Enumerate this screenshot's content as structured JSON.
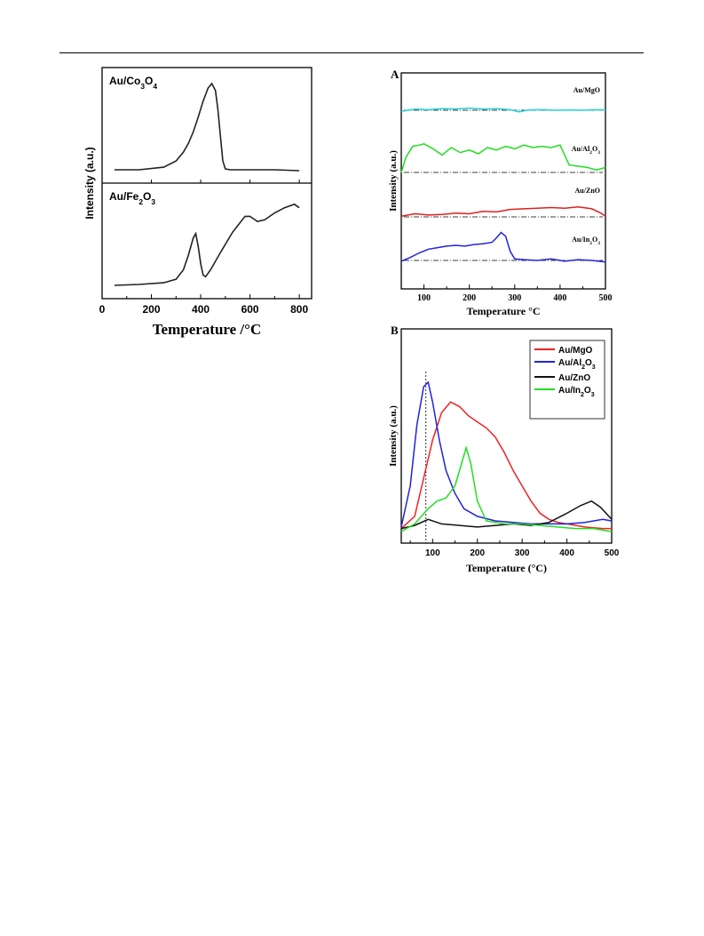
{
  "chart_data": [
    {
      "id": "left",
      "type": "line",
      "xlabel": "Temperature /°C",
      "ylabel": "Intensity (a.u.)",
      "xlim": [
        0,
        850
      ],
      "xticks": [
        0,
        200,
        400,
        600,
        800
      ],
      "legend": "none",
      "grid": false,
      "panels": [
        {
          "label": "Au/Co3O4",
          "label_parts": {
            "base": "Au/Co",
            "sub1": "3",
            "mid": "O",
            "sub2": "4"
          },
          "series": [
            {
              "color": "#222222",
              "x": [
                50,
                150,
                250,
                300,
                330,
                350,
                370,
                390,
                410,
                430,
                445,
                460,
                470,
                480,
                490,
                500,
                520,
                600,
                700,
                800
              ],
              "y": [
                0.02,
                0.02,
                0.05,
                0.12,
                0.22,
                0.32,
                0.45,
                0.62,
                0.8,
                0.95,
                1.0,
                0.92,
                0.7,
                0.4,
                0.12,
                0.03,
                0.02,
                0.02,
                0.02,
                0.01
              ]
            }
          ]
        },
        {
          "label": "Au/Fe2O3",
          "label_parts": {
            "base": "Au/Fe",
            "sub1": "2",
            "mid": "O",
            "sub2": "3"
          },
          "series": [
            {
              "color": "#222222",
              "x": [
                50,
                150,
                250,
                300,
                330,
                350,
                370,
                380,
                390,
                400,
                410,
                420,
                440,
                480,
                530,
                580,
                600,
                630,
                660,
                700,
                740,
                780,
                800
              ],
              "y": [
                0.0,
                0.01,
                0.03,
                0.07,
                0.18,
                0.35,
                0.55,
                0.6,
                0.45,
                0.25,
                0.12,
                0.1,
                0.18,
                0.38,
                0.62,
                0.8,
                0.8,
                0.74,
                0.76,
                0.84,
                0.9,
                0.94,
                0.9
              ]
            }
          ]
        }
      ]
    },
    {
      "id": "A",
      "panel_letter": "A",
      "type": "line",
      "xlabel": "Temperature °C",
      "ylabel": "Intensity (a.u.)",
      "xlim": [
        50,
        500
      ],
      "xticks": [
        100,
        200,
        300,
        400,
        500
      ],
      "legend": "inline-right",
      "grid": false,
      "series": [
        {
          "name": "Au/MgO",
          "name_parts": {
            "base": "Au/MgO"
          },
          "color": "#22d3d9",
          "baseline": 0.0,
          "x": [
            50,
            80,
            110,
            140,
            170,
            200,
            230,
            260,
            290,
            310,
            330,
            360,
            390,
            420,
            450,
            480,
            500
          ],
          "y": [
            -0.1,
            0.1,
            0.05,
            0.15,
            0.12,
            0.2,
            0.1,
            0.15,
            0.05,
            -0.15,
            0.02,
            0.05,
            0.0,
            0.02,
            0.0,
            0.05,
            0.02
          ]
        },
        {
          "name": "Au/Al2O3",
          "name_parts": {
            "base": "Au/Al",
            "sub1": "2",
            "mid": "O",
            "sub2": "3"
          },
          "color": "#22dd22",
          "baseline": 0.0,
          "x": [
            50,
            60,
            75,
            90,
            100,
            120,
            140,
            160,
            180,
            200,
            220,
            240,
            260,
            280,
            300,
            320,
            340,
            360,
            380,
            400,
            410,
            420,
            440,
            460,
            480,
            500
          ],
          "y": [
            0.0,
            0.6,
            1.05,
            1.1,
            1.15,
            0.95,
            0.7,
            1.0,
            0.8,
            0.9,
            0.75,
            1.0,
            0.9,
            1.05,
            0.95,
            1.1,
            1.0,
            1.05,
            1.0,
            1.1,
            0.7,
            0.3,
            0.25,
            0.2,
            0.1,
            0.2
          ]
        },
        {
          "name": "Au/ZnO",
          "name_parts": {
            "base": "Au/ZnO"
          },
          "color": "#e02020",
          "baseline": 0.0,
          "x": [
            50,
            80,
            110,
            140,
            170,
            200,
            230,
            260,
            290,
            320,
            350,
            380,
            410,
            440,
            470,
            490,
            500
          ],
          "y": [
            0.05,
            0.25,
            0.15,
            0.2,
            0.3,
            0.25,
            0.45,
            0.4,
            0.6,
            0.65,
            0.7,
            0.75,
            0.7,
            0.8,
            0.65,
            0.3,
            0.05
          ]
        },
        {
          "name": "Au/In2O3",
          "name_parts": {
            "base": "Au/In",
            "sub1": "2",
            "mid": "O",
            "sub2": "3"
          },
          "color": "#2222dd",
          "baseline": 0.0,
          "x": [
            50,
            70,
            90,
            110,
            130,
            150,
            170,
            190,
            210,
            230,
            250,
            260,
            270,
            280,
            290,
            300,
            320,
            350,
            380,
            410,
            440,
            470,
            500
          ],
          "y": [
            -0.05,
            0.2,
            0.5,
            0.75,
            0.85,
            0.95,
            1.0,
            0.95,
            1.05,
            1.1,
            1.2,
            1.5,
            1.85,
            1.6,
            0.6,
            0.1,
            0.05,
            0.0,
            0.1,
            -0.05,
            0.05,
            0.0,
            -0.1
          ]
        }
      ]
    },
    {
      "id": "B",
      "panel_letter": "B",
      "type": "line",
      "xlabel": "Temperature (°C)",
      "ylabel": "Intensity (a.u.)",
      "xlim": [
        30,
        500
      ],
      "xticks": [
        100,
        200,
        300,
        400,
        500
      ],
      "legend": "top-right",
      "grid": false,
      "reference_line_x": 85,
      "series": [
        {
          "name": "Au/MgO",
          "name_parts": {
            "base": "Au/MgO"
          },
          "color": "#ee2222",
          "x": [
            30,
            60,
            80,
            100,
            120,
            140,
            160,
            180,
            200,
            220,
            240,
            260,
            280,
            300,
            320,
            340,
            360,
            380,
            400,
            440,
            480,
            500
          ],
          "y": [
            0.02,
            0.1,
            0.35,
            0.6,
            0.78,
            0.85,
            0.82,
            0.76,
            0.72,
            0.68,
            0.62,
            0.52,
            0.4,
            0.3,
            0.2,
            0.12,
            0.08,
            0.06,
            0.05,
            0.03,
            0.02,
            0.02
          ]
        },
        {
          "name": "Au/Al2O3",
          "name_parts": {
            "base": "Au/Al",
            "sub1": "2",
            "mid": "O",
            "sub2": "3"
          },
          "color": "#2222dd",
          "x": [
            30,
            50,
            65,
            80,
            90,
            100,
            115,
            130,
            150,
            170,
            200,
            240,
            280,
            320,
            360,
            400,
            440,
            480,
            500
          ],
          "y": [
            0.03,
            0.3,
            0.7,
            0.95,
            0.98,
            0.85,
            0.6,
            0.4,
            0.25,
            0.15,
            0.1,
            0.07,
            0.06,
            0.05,
            0.05,
            0.05,
            0.06,
            0.08,
            0.07
          ]
        },
        {
          "name": "Au/ZnO",
          "name_parts": {
            "base": "Au/ZnO"
          },
          "color": "#111111",
          "x": [
            30,
            60,
            90,
            120,
            160,
            200,
            240,
            280,
            320,
            360,
            400,
            430,
            455,
            475,
            500
          ],
          "y": [
            0.02,
            0.04,
            0.08,
            0.05,
            0.04,
            0.03,
            0.04,
            0.05,
            0.04,
            0.06,
            0.12,
            0.17,
            0.2,
            0.16,
            0.08
          ]
        },
        {
          "name": "Au/In2O3",
          "name_parts": {
            "base": "Au/In",
            "sub1": "2",
            "mid": "O",
            "sub2": "3"
          },
          "color": "#22dd22",
          "x": [
            30,
            60,
            90,
            110,
            130,
            150,
            165,
            175,
            185,
            200,
            220,
            260,
            300,
            340,
            380,
            420,
            460,
            500
          ],
          "y": [
            0.0,
            0.05,
            0.15,
            0.2,
            0.22,
            0.3,
            0.45,
            0.55,
            0.45,
            0.2,
            0.07,
            0.05,
            0.05,
            0.04,
            0.03,
            0.02,
            0.02,
            0.0
          ]
        }
      ]
    }
  ]
}
